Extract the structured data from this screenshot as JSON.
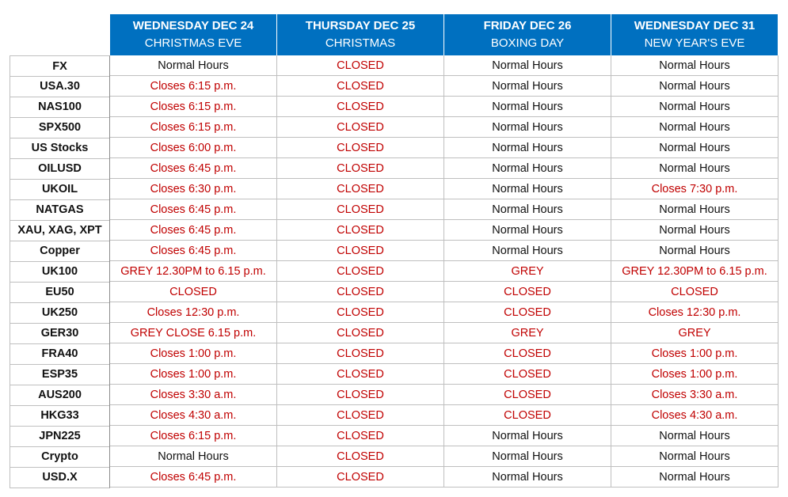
{
  "table": {
    "columns": [
      {
        "day": "WEDNESDAY DEC 24",
        "name": "CHRISTMAS EVE"
      },
      {
        "day": "THURSDAY DEC 25",
        "name": "CHRISTMAS"
      },
      {
        "day": "FRIDAY DEC 26",
        "name": "BOXING DAY"
      },
      {
        "day": "WEDNESDAY DEC 31",
        "name": "NEW YEAR'S EVE"
      }
    ],
    "rows": [
      [
        "FX",
        "Normal Hours",
        "CLOSED",
        "Normal Hours",
        "Normal Hours"
      ],
      [
        "USA.30",
        "Closes 6:15 p.m.",
        "CLOSED",
        "Normal Hours",
        "Normal Hours"
      ],
      [
        "NAS100",
        "Closes 6:15 p.m.",
        "CLOSED",
        "Normal Hours",
        "Normal Hours"
      ],
      [
        "SPX500",
        "Closes 6:15 p.m.",
        "CLOSED",
        "Normal Hours",
        "Normal Hours"
      ],
      [
        "US Stocks",
        "Closes 6:00 p.m.",
        "CLOSED",
        "Normal Hours",
        "Normal Hours"
      ],
      [
        "OILUSD",
        "Closes 6:45 p.m.",
        "CLOSED",
        "Normal Hours",
        "Normal Hours"
      ],
      [
        "UKOIL",
        "Closes 6:30 p.m.",
        "CLOSED",
        "Normal Hours",
        "Closes 7:30 p.m."
      ],
      [
        "NATGAS",
        "Closes 6:45 p.m.",
        "CLOSED",
        "Normal Hours",
        "Normal Hours"
      ],
      [
        "XAU, XAG, XPT",
        "Closes 6:45 p.m.",
        "CLOSED",
        "Normal Hours",
        "Normal Hours"
      ],
      [
        "Copper",
        "Closes 6:45 p.m.",
        "CLOSED",
        "Normal Hours",
        "Normal Hours"
      ],
      [
        "UK100",
        "GREY 12.30PM to 6.15 p.m.",
        "CLOSED",
        "GREY",
        "GREY 12.30PM to 6.15 p.m."
      ],
      [
        "EU50",
        "CLOSED",
        "CLOSED",
        "CLOSED",
        "CLOSED"
      ],
      [
        "UK250",
        "Closes 12:30 p.m.",
        "CLOSED",
        "CLOSED",
        "Closes 12:30 p.m."
      ],
      [
        "GER30",
        "GREY CLOSE 6.15 p.m.",
        "CLOSED",
        "GREY",
        "GREY"
      ],
      [
        "FRA40",
        "Closes 1:00 p.m.",
        "CLOSED",
        "CLOSED",
        "Closes 1:00 p.m."
      ],
      [
        "ESP35",
        "Closes 1:00 p.m.",
        "CLOSED",
        "CLOSED",
        "Closes 1:00 p.m."
      ],
      [
        "AUS200",
        "Closes 3:30 a.m.",
        "CLOSED",
        "CLOSED",
        "Closes 3:30 a.m."
      ],
      [
        "HKG33",
        "Closes 4:30 a.m.",
        "CLOSED",
        "CLOSED",
        "Closes 4:30 a.m."
      ],
      [
        "JPN225",
        "Closes 6:15 p.m.",
        "CLOSED",
        "Normal Hours",
        "Normal Hours"
      ],
      [
        "Crypto",
        "Normal Hours",
        "CLOSED",
        "Normal Hours",
        "Normal Hours"
      ],
      [
        "USD.X",
        "Closes 6:45 p.m.",
        "CLOSED",
        "Normal Hours",
        "Normal Hours"
      ]
    ]
  }
}
